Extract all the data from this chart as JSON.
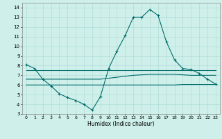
{
  "title": "",
  "xlabel": "Humidex (Indice chaleur)",
  "ylabel": "",
  "bg_color": "#cff0ea",
  "line_color": "#006b6b",
  "grid_color": "#b0ddd8",
  "xlim": [
    -0.5,
    23.5
  ],
  "ylim": [
    3,
    14.5
  ],
  "yticks": [
    3,
    4,
    5,
    6,
    7,
    8,
    9,
    10,
    11,
    12,
    13,
    14
  ],
  "xticks": [
    0,
    1,
    2,
    3,
    4,
    5,
    6,
    7,
    8,
    9,
    10,
    11,
    12,
    13,
    14,
    15,
    16,
    17,
    18,
    19,
    20,
    21,
    22,
    23
  ],
  "line1_x": [
    0,
    1,
    2,
    3,
    4,
    5,
    6,
    7,
    8,
    9,
    10,
    11,
    12,
    13,
    14,
    15,
    16,
    17,
    18,
    19,
    20,
    21,
    22,
    23
  ],
  "line1_y": [
    8.1,
    7.7,
    6.6,
    5.9,
    5.1,
    4.7,
    4.4,
    4.0,
    3.4,
    4.8,
    7.7,
    9.5,
    11.1,
    13.0,
    13.0,
    13.8,
    13.2,
    10.5,
    8.6,
    7.7,
    7.6,
    7.2,
    6.6,
    6.1
  ],
  "line2_x": [
    0,
    1,
    2,
    3,
    4,
    5,
    6,
    7,
    8,
    9,
    10,
    11,
    12,
    13,
    14,
    15,
    16,
    17,
    18,
    19,
    20,
    21,
    22,
    23
  ],
  "line2_y": [
    7.55,
    7.55,
    7.55,
    7.55,
    7.55,
    7.55,
    7.55,
    7.55,
    7.55,
    7.55,
    7.55,
    7.55,
    7.55,
    7.55,
    7.55,
    7.55,
    7.55,
    7.55,
    7.55,
    7.55,
    7.55,
    7.55,
    7.55,
    7.55
  ],
  "line3_x": [
    0,
    1,
    2,
    3,
    4,
    5,
    6,
    7,
    8,
    9,
    10,
    11,
    12,
    13,
    14,
    15,
    16,
    17,
    18,
    19,
    20,
    21,
    22,
    23
  ],
  "line3_y": [
    6.6,
    6.6,
    6.6,
    6.6,
    6.6,
    6.6,
    6.6,
    6.6,
    6.6,
    6.6,
    6.7,
    6.8,
    6.9,
    7.0,
    7.05,
    7.1,
    7.1,
    7.1,
    7.1,
    7.05,
    7.0,
    7.0,
    7.0,
    7.0
  ],
  "line4_x": [
    0,
    1,
    2,
    3,
    4,
    5,
    6,
    7,
    8,
    9,
    10,
    11,
    12,
    13,
    14,
    15,
    16,
    17,
    18,
    19,
    20,
    21,
    22,
    23
  ],
  "line4_y": [
    6.0,
    6.0,
    6.0,
    6.0,
    6.0,
    6.0,
    6.0,
    6.0,
    6.0,
    6.0,
    6.0,
    6.0,
    6.0,
    6.0,
    6.0,
    6.0,
    6.0,
    6.0,
    6.0,
    6.05,
    6.05,
    6.05,
    6.05,
    6.05
  ]
}
